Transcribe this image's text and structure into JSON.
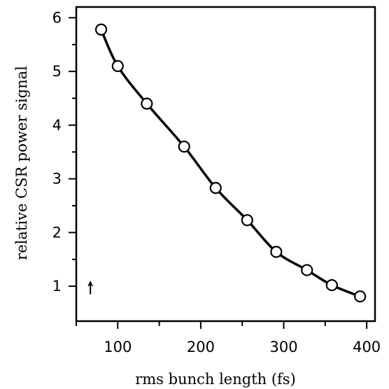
{
  "chart_data": {
    "type": "line",
    "title": "",
    "xlabel": "rms bunch length (fs)",
    "ylabel": "relative CSR power signal",
    "xlim": [
      50,
      410
    ],
    "ylim": [
      0.35,
      6.2
    ],
    "x_ticks": [
      100,
      200,
      300,
      400
    ],
    "y_ticks": [
      1,
      2,
      3,
      4,
      5,
      6
    ],
    "grid": false,
    "legend": null,
    "series": [
      {
        "marker": "circle",
        "color": "#000000",
        "x": [
          80,
          100,
          135,
          180,
          218,
          256,
          291,
          328,
          358,
          392
        ],
        "y": [
          5.78,
          5.1,
          4.4,
          3.6,
          2.83,
          2.23,
          1.64,
          1.3,
          1.02,
          0.81
        ]
      }
    ],
    "annotations": [
      {
        "type": "arrow",
        "x": 67,
        "y_from": 0.85,
        "y_to": 1.08,
        "direction": "up"
      }
    ]
  }
}
